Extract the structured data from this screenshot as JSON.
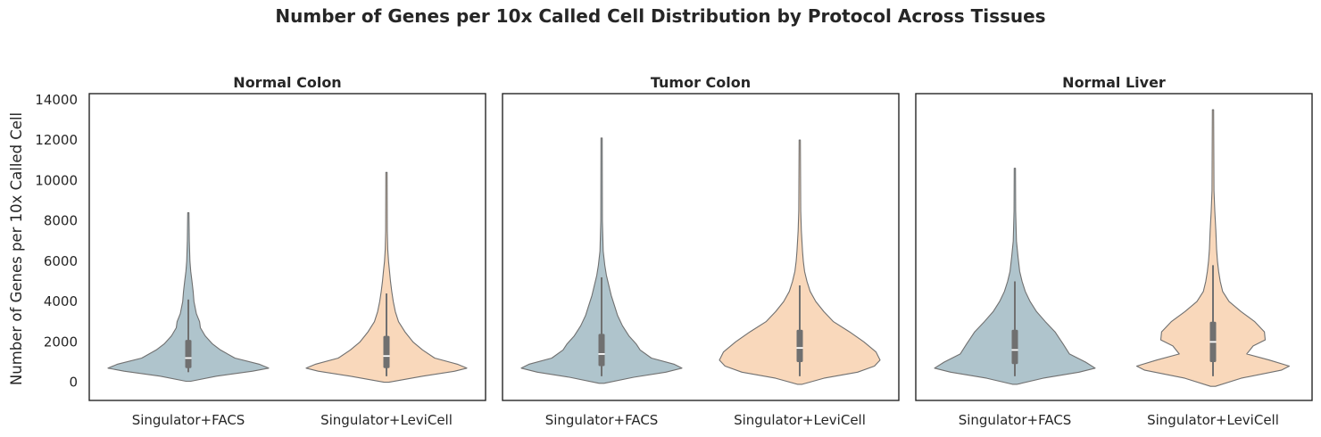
{
  "title": "Number of Genes per 10x Called Cell Distribution by Protocol Across Tissues",
  "ylabel": "Number of Genes per 10x Called Cell",
  "colors": {
    "Singulator+FACS": "#afc4cc",
    "Singulator+LeviCell": "#f9d8bb",
    "outline": "#707070",
    "box": "#707070",
    "median": "#ffffff"
  },
  "chart_data": [
    {
      "type": "violin",
      "title": "Normal Colon",
      "categories": [
        "Singulator+FACS",
        "Singulator+LeviCell"
      ],
      "ylim": [
        -900,
        14300
      ],
      "yticks": [
        0,
        2000,
        4000,
        6000,
        8000,
        10000,
        12000,
        14000
      ],
      "grid": false,
      "series": [
        {
          "name": "Singulator+FACS",
          "min": 50,
          "max": 8400,
          "q1": 700,
          "median": 1200,
          "q3": 2100,
          "whisker_low": 500,
          "whisker_high": 4100,
          "density": [
            [
              50,
              0.03
            ],
            [
              300,
              0.35
            ],
            [
              550,
              0.8
            ],
            [
              700,
              1.0
            ],
            [
              900,
              0.88
            ],
            [
              1200,
              0.58
            ],
            [
              1600,
              0.4
            ],
            [
              1900,
              0.3
            ],
            [
              2300,
              0.21
            ],
            [
              2700,
              0.15
            ],
            [
              3000,
              0.14
            ],
            [
              3400,
              0.1
            ],
            [
              4000,
              0.07
            ],
            [
              4500,
              0.06
            ],
            [
              5000,
              0.045
            ],
            [
              5500,
              0.03
            ],
            [
              6000,
              0.02
            ],
            [
              7000,
              0.012
            ],
            [
              8400,
              0.008
            ]
          ]
        },
        {
          "name": "Singulator+LeviCell",
          "min": 0,
          "max": 10400,
          "q1": 700,
          "median": 1300,
          "q3": 2300,
          "whisker_low": 300,
          "whisker_high": 4400,
          "density": [
            [
              0,
              0.03
            ],
            [
              300,
              0.45
            ],
            [
              550,
              0.85
            ],
            [
              700,
              1.0
            ],
            [
              900,
              0.88
            ],
            [
              1200,
              0.6
            ],
            [
              1600,
              0.45
            ],
            [
              2000,
              0.33
            ],
            [
              2500,
              0.23
            ],
            [
              3000,
              0.15
            ],
            [
              3500,
              0.11
            ],
            [
              4000,
              0.085
            ],
            [
              4500,
              0.065
            ],
            [
              5000,
              0.05
            ],
            [
              5500,
              0.038
            ],
            [
              6000,
              0.025
            ],
            [
              6600,
              0.015
            ],
            [
              7500,
              0.01
            ],
            [
              10400,
              0.008
            ]
          ]
        }
      ]
    },
    {
      "type": "violin",
      "title": "Tumor Colon",
      "categories": [
        "Singulator+FACS",
        "Singulator+LeviCell"
      ],
      "ylim": [
        -900,
        14300
      ],
      "series": [
        {
          "name": "Singulator+FACS",
          "min": -50,
          "max": 12100,
          "q1": 800,
          "median": 1400,
          "q3": 2400,
          "whisker_low": 300,
          "whisker_high": 5200,
          "density": [
            [
              -50,
              0.03
            ],
            [
              250,
              0.4
            ],
            [
              500,
              0.8
            ],
            [
              700,
              1.0
            ],
            [
              900,
              0.9
            ],
            [
              1200,
              0.62
            ],
            [
              1600,
              0.48
            ],
            [
              1900,
              0.43
            ],
            [
              2300,
              0.34
            ],
            [
              2800,
              0.26
            ],
            [
              3300,
              0.2
            ],
            [
              3800,
              0.16
            ],
            [
              4300,
              0.12
            ],
            [
              4800,
              0.09
            ],
            [
              5300,
              0.06
            ],
            [
              5800,
              0.04
            ],
            [
              6500,
              0.02
            ],
            [
              8000,
              0.01
            ],
            [
              12100,
              0.008
            ]
          ]
        },
        {
          "name": "Singulator+LeviCell",
          "min": -100,
          "max": 12000,
          "q1": 1000,
          "median": 1700,
          "q3": 2600,
          "whisker_low": 300,
          "whisker_high": 4800,
          "density": [
            [
              -100,
              0.03
            ],
            [
              200,
              0.3
            ],
            [
              500,
              0.72
            ],
            [
              800,
              0.93
            ],
            [
              1100,
              1.0
            ],
            [
              1500,
              0.95
            ],
            [
              2000,
              0.8
            ],
            [
              2500,
              0.62
            ],
            [
              3000,
              0.42
            ],
            [
              3500,
              0.3
            ],
            [
              4000,
              0.2
            ],
            [
              4500,
              0.13
            ],
            [
              5000,
              0.09
            ],
            [
              5500,
              0.06
            ],
            [
              6000,
              0.045
            ],
            [
              6500,
              0.035
            ],
            [
              7500,
              0.02
            ],
            [
              8500,
              0.012
            ],
            [
              12000,
              0.008
            ]
          ]
        }
      ]
    },
    {
      "type": "violin",
      "title": "Normal Liver",
      "categories": [
        "Singulator+FACS",
        "Singulator+LeviCell"
      ],
      "ylim": [
        -900,
        14300
      ],
      "series": [
        {
          "name": "Singulator+FACS",
          "min": -100,
          "max": 10600,
          "q1": 900,
          "median": 1600,
          "q3": 2600,
          "whisker_low": 300,
          "whisker_high": 5000,
          "density": [
            [
              -100,
              0.03
            ],
            [
              200,
              0.35
            ],
            [
              500,
              0.8
            ],
            [
              700,
              1.0
            ],
            [
              1000,
              0.88
            ],
            [
              1400,
              0.68
            ],
            [
              1900,
              0.6
            ],
            [
              2500,
              0.5
            ],
            [
              3000,
              0.38
            ],
            [
              3500,
              0.27
            ],
            [
              4000,
              0.19
            ],
            [
              4500,
              0.13
            ],
            [
              5000,
              0.09
            ],
            [
              5500,
              0.06
            ],
            [
              6200,
              0.04
            ],
            [
              7000,
              0.02
            ],
            [
              8500,
              0.01
            ],
            [
              10600,
              0.008
            ]
          ]
        },
        {
          "name": "Singulator+LeviCell",
          "min": -200,
          "max": 13500,
          "q1": 1000,
          "median": 2000,
          "q3": 3000,
          "whisker_low": 300,
          "whisker_high": 5800,
          "density": [
            [
              -200,
              0.03
            ],
            [
              200,
              0.35
            ],
            [
              600,
              0.85
            ],
            [
              800,
              0.95
            ],
            [
              1100,
              0.7
            ],
            [
              1400,
              0.42
            ],
            [
              1800,
              0.5
            ],
            [
              2100,
              0.65
            ],
            [
              2500,
              0.64
            ],
            [
              3000,
              0.52
            ],
            [
              3500,
              0.35
            ],
            [
              4000,
              0.2
            ],
            [
              4500,
              0.12
            ],
            [
              5000,
              0.09
            ],
            [
              5500,
              0.07
            ],
            [
              6000,
              0.055
            ],
            [
              6600,
              0.045
            ],
            [
              7500,
              0.035
            ],
            [
              8500,
              0.022
            ],
            [
              9500,
              0.012
            ],
            [
              13500,
              0.008
            ]
          ]
        }
      ]
    }
  ]
}
